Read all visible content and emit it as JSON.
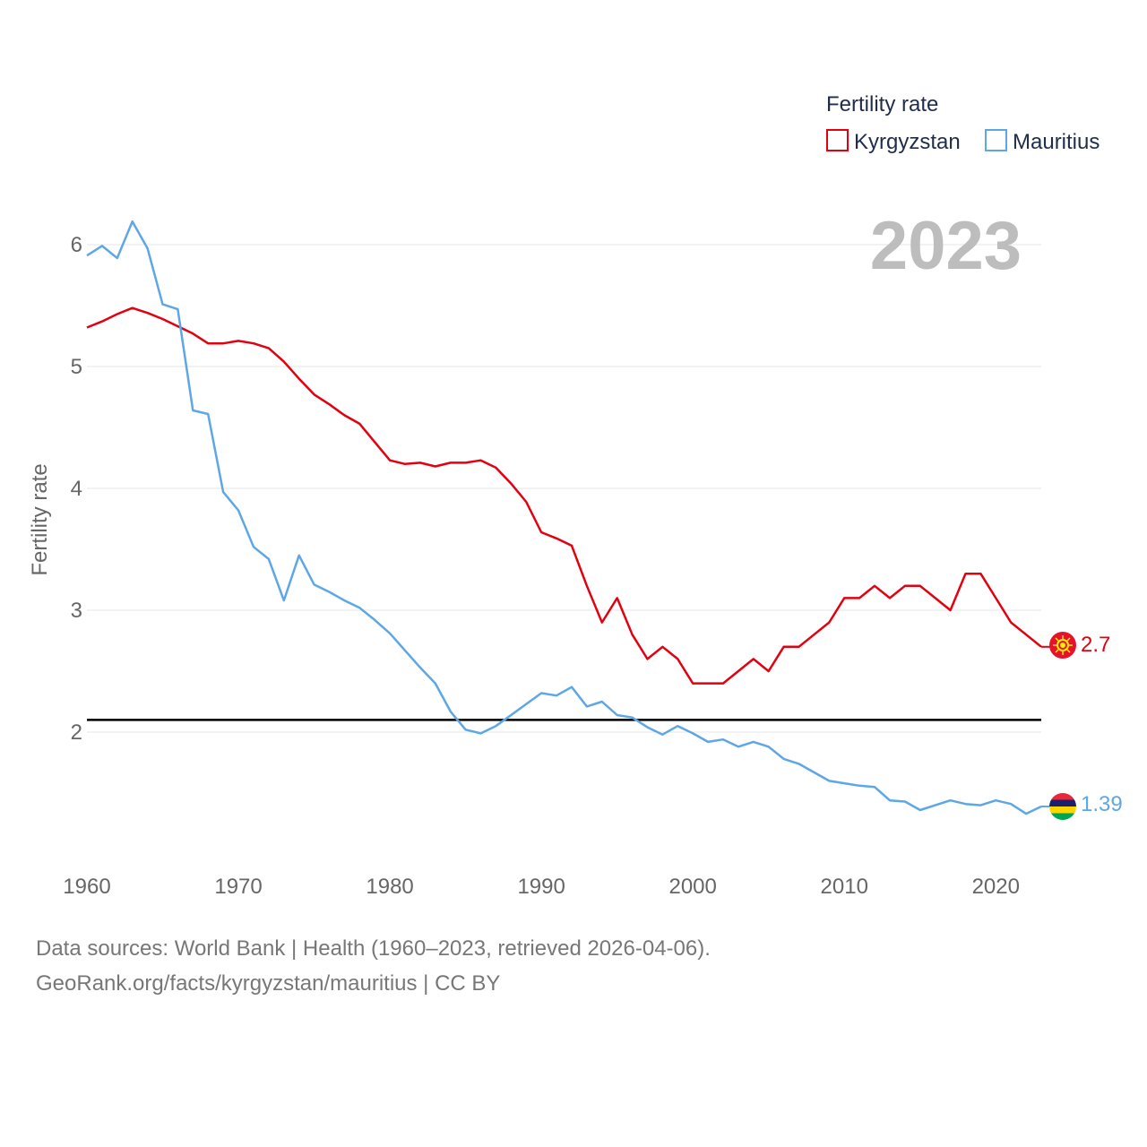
{
  "chart_data": {
    "type": "line",
    "title": "Fertility rate",
    "ylabel": "Fertility rate",
    "xlabel": "",
    "year_display": "2023",
    "xlim": [
      1960,
      2023
    ],
    "ylim": [
      1.0,
      6.5
    ],
    "x_ticks": [
      1960,
      1970,
      1980,
      1990,
      2000,
      2010,
      2020
    ],
    "y_ticks": [
      2,
      3,
      4,
      5,
      6
    ],
    "reference_line": 2.1,
    "x": [
      1960,
      1961,
      1962,
      1963,
      1964,
      1965,
      1966,
      1967,
      1968,
      1969,
      1970,
      1971,
      1972,
      1973,
      1974,
      1975,
      1976,
      1977,
      1978,
      1979,
      1980,
      1981,
      1982,
      1983,
      1984,
      1985,
      1986,
      1987,
      1988,
      1989,
      1990,
      1991,
      1992,
      1993,
      1994,
      1995,
      1996,
      1997,
      1998,
      1999,
      2000,
      2001,
      2002,
      2003,
      2004,
      2005,
      2006,
      2007,
      2008,
      2009,
      2010,
      2011,
      2012,
      2013,
      2014,
      2015,
      2016,
      2017,
      2018,
      2019,
      2020,
      2021,
      2022,
      2023
    ],
    "series": [
      {
        "name": "Kyrgyzstan",
        "color": "#e3000f",
        "end_label": "2.7",
        "flag_icon": "kyrgyzstan-flag-icon",
        "values": [
          5.32,
          5.37,
          5.43,
          5.48,
          5.44,
          5.39,
          5.33,
          5.27,
          5.19,
          5.19,
          5.21,
          5.19,
          5.15,
          5.04,
          4.9,
          4.77,
          4.69,
          4.6,
          4.53,
          4.38,
          4.23,
          4.2,
          4.21,
          4.18,
          4.21,
          4.21,
          4.23,
          4.17,
          4.04,
          3.89,
          3.64,
          3.59,
          3.53,
          3.2,
          2.9,
          3.1,
          2.8,
          2.6,
          2.7,
          2.6,
          2.4,
          2.4,
          2.4,
          2.5,
          2.6,
          2.5,
          2.7,
          2.7,
          2.8,
          2.9,
          3.1,
          3.1,
          3.2,
          3.1,
          3.2,
          3.2,
          3.1,
          3.0,
          3.3,
          3.3,
          3.1,
          2.9,
          2.8,
          2.7
        ]
      },
      {
        "name": "Mauritius",
        "color": "#5ea7e6",
        "end_label": "1.39",
        "flag_icon": "mauritius-flag-icon",
        "values": [
          5.91,
          5.99,
          5.89,
          6.19,
          5.97,
          5.51,
          5.47,
          4.64,
          4.61,
          3.97,
          3.82,
          3.52,
          3.42,
          3.08,
          3.45,
          3.21,
          3.15,
          3.08,
          3.02,
          2.92,
          2.81,
          2.67,
          2.53,
          2.4,
          2.17,
          2.02,
          1.99,
          2.05,
          2.14,
          2.23,
          2.32,
          2.3,
          2.37,
          2.21,
          2.25,
          2.14,
          2.12,
          2.04,
          1.98,
          2.05,
          1.99,
          1.92,
          1.94,
          1.88,
          1.92,
          1.88,
          1.78,
          1.74,
          1.67,
          1.6,
          1.58,
          1.56,
          1.55,
          1.44,
          1.43,
          1.36,
          1.4,
          1.44,
          1.41,
          1.4,
          1.44,
          1.41,
          1.33,
          1.39
        ]
      }
    ]
  },
  "footer": {
    "line1": "Data sources: World Bank | Health (1960–2023, retrieved 2026-04-06).",
    "line2": "GeoRank.org/facts/kyrgyzstan/mauritius | CC BY"
  }
}
